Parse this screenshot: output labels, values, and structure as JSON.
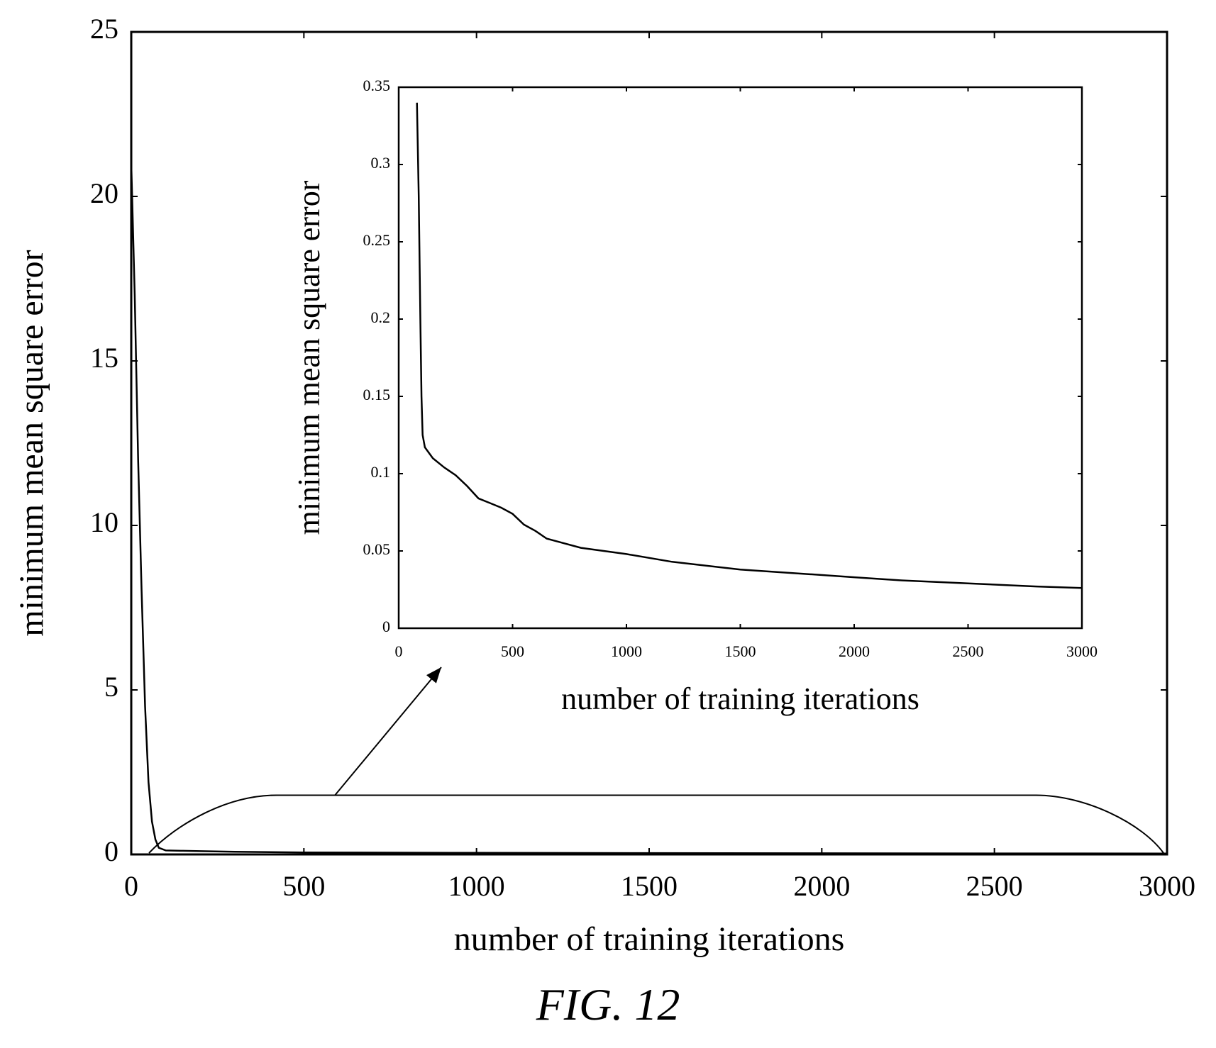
{
  "caption": "FIG. 12",
  "chart_data": [
    {
      "type": "line",
      "title": "",
      "xlabel": "number of training iterations",
      "ylabel": "minimum mean square error",
      "xlim": [
        0,
        3000
      ],
      "ylim": [
        0,
        25
      ],
      "xticks": [
        0,
        500,
        1000,
        1500,
        2000,
        2500,
        3000
      ],
      "yticks": [
        0,
        5,
        10,
        15,
        20,
        25
      ],
      "xtick_labels": [
        "0",
        "500",
        "1000",
        "1500",
        "2000",
        "2500",
        "3000"
      ],
      "ytick_labels": [
        "0",
        "5",
        "10",
        "15",
        "20",
        "25"
      ],
      "grid": false,
      "series": [
        {
          "x": [
            0,
            10,
            20,
            30,
            40,
            50,
            60,
            70,
            80,
            100,
            150,
            200,
            300,
            500,
            1000,
            1500,
            2000,
            2500,
            3000
          ],
          "y": [
            21,
            17,
            12,
            8,
            4.5,
            2.2,
            1.0,
            0.45,
            0.2,
            0.12,
            0.11,
            0.1,
            0.08,
            0.06,
            0.048,
            0.04,
            0.035,
            0.03,
            0.027
          ]
        }
      ],
      "annotations": [
        {
          "type": "zoom-bracket",
          "x_range": [
            0,
            3000
          ],
          "y_level": 1.8,
          "points_to": "inset"
        }
      ]
    },
    {
      "type": "line",
      "title": "",
      "xlabel": "number of training iterations",
      "ylabel": "minimum mean square error",
      "xlim": [
        0,
        3000
      ],
      "ylim": [
        0,
        0.35
      ],
      "xticks": [
        0,
        500,
        1000,
        1500,
        2000,
        2500,
        3000
      ],
      "yticks": [
        0,
        0.05,
        0.1,
        0.15,
        0.2,
        0.25,
        0.3,
        0.35
      ],
      "xtick_labels": [
        "0",
        "500",
        "1000",
        "1500",
        "2000",
        "2500",
        "3000"
      ],
      "ytick_labels": [
        "0",
        "0.05",
        "0.1",
        "0.15",
        "0.2",
        "0.25",
        "0.3",
        "0.35"
      ],
      "grid": false,
      "series": [
        {
          "x": [
            80,
            88,
            95,
            100,
            105,
            115,
            150,
            200,
            250,
            300,
            350,
            400,
            450,
            500,
            550,
            600,
            650,
            700,
            800,
            900,
            1000,
            1200,
            1500,
            1800,
            2000,
            2200,
            2500,
            2800,
            3000
          ],
          "y": [
            0.34,
            0.28,
            0.2,
            0.15,
            0.125,
            0.117,
            0.11,
            0.104,
            0.099,
            0.092,
            0.084,
            0.081,
            0.078,
            0.074,
            0.067,
            0.063,
            0.058,
            0.056,
            0.052,
            0.05,
            0.048,
            0.043,
            0.038,
            0.035,
            0.033,
            0.031,
            0.029,
            0.027,
            0.026
          ]
        }
      ]
    }
  ]
}
